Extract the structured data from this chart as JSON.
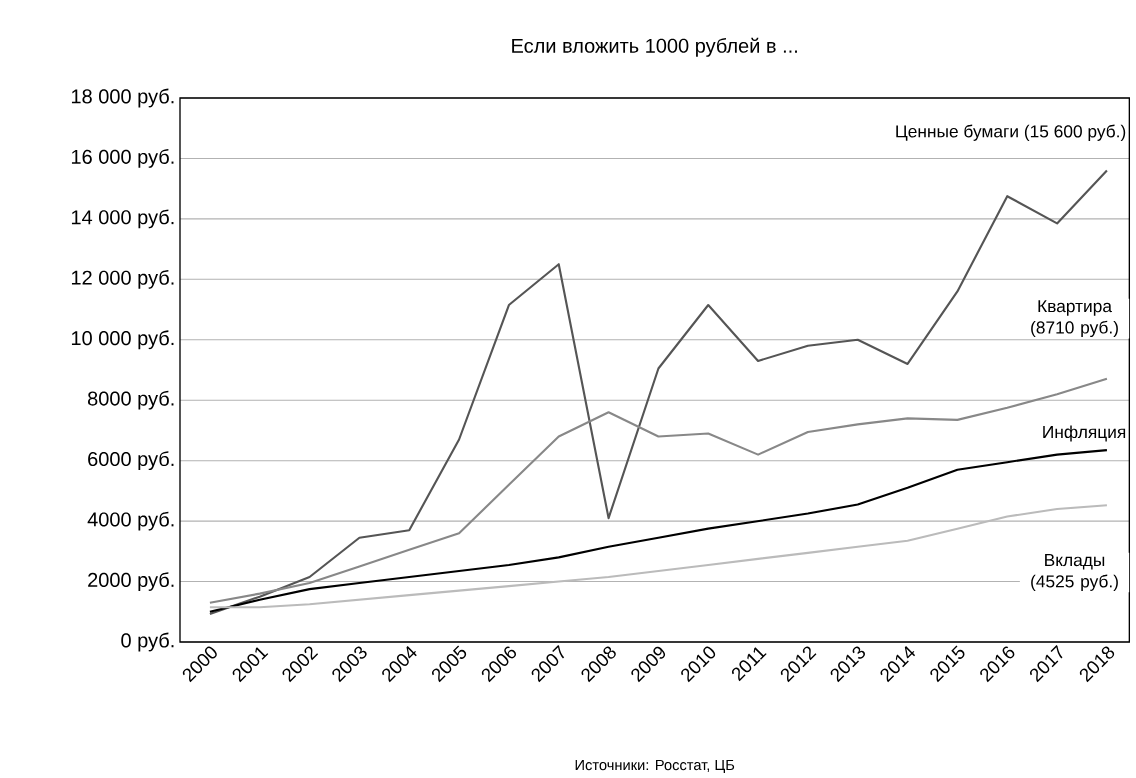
{
  "chart_data": {
    "type": "line",
    "title": "Если вложить 1000 рублей в ...",
    "categories": [
      "2000",
      "2001",
      "2002",
      "2003",
      "2004",
      "2005",
      "2006",
      "2007",
      "2008",
      "2009",
      "2010",
      "2011",
      "2012",
      "2013",
      "2014",
      "2015",
      "2016",
      "2017",
      "2018"
    ],
    "series": [
      {
        "name": "Ценные бумаги (15 600 руб.)",
        "color": "#555555",
        "values": [
          930,
          1500,
          2150,
          3450,
          3700,
          6700,
          11150,
          12500,
          4100,
          9050,
          11150,
          9300,
          9800,
          10000,
          9200,
          11600,
          14750,
          13850,
          15600
        ]
      },
      {
        "name": "Квартира (8710 руб.)",
        "color": "#888888",
        "values": [
          1300,
          1600,
          1950,
          2500,
          3050,
          3600,
          5200,
          6800,
          7600,
          6800,
          6900,
          6200,
          6950,
          7200,
          7400,
          7350,
          7750,
          8200,
          8710
        ]
      },
      {
        "name": "Инфляция",
        "color": "#000000",
        "values": [
          1000,
          1400,
          1750,
          1950,
          2150,
          2350,
          2550,
          2800,
          3150,
          3450,
          3750,
          4000,
          4250,
          4550,
          5100,
          5700,
          5950,
          6200,
          6350
        ]
      },
      {
        "name": "Вклады (4525 руб.)",
        "color": "#bbbbbb",
        "values": [
          1150,
          1150,
          1250,
          1400,
          1550,
          1700,
          1850,
          2000,
          2150,
          2350,
          2550,
          2750,
          2950,
          3150,
          3350,
          3750,
          4150,
          4400,
          4525
        ]
      }
    ],
    "ylim": [
      0,
      18000
    ],
    "yticks": [
      {
        "value": 0,
        "label": "0 руб."
      },
      {
        "value": 2000,
        "label": "2000 руб."
      },
      {
        "value": 4000,
        "label": "4000 руб."
      },
      {
        "value": 6000,
        "label": "6000 руб."
      },
      {
        "value": 8000,
        "label": "8000 руб."
      },
      {
        "value": 10000,
        "label": "10 000 руб."
      },
      {
        "value": 12000,
        "label": "12 000 руб."
      },
      {
        "value": 14000,
        "label": "14 000 руб."
      },
      {
        "value": 16000,
        "label": "16 000 руб."
      },
      {
        "value": 18000,
        "label": "18 000 руб."
      }
    ],
    "grid": "y",
    "legend": false,
    "marker": "none",
    "line_style": "solid",
    "annotations": [
      "Источники: Росстат, ЦБ"
    ]
  }
}
